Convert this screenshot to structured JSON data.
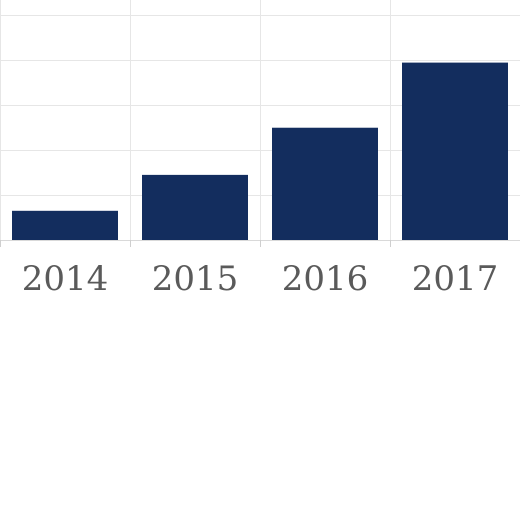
{
  "chart_data": {
    "type": "bar",
    "title": "",
    "xlabel": "",
    "ylabel": "",
    "categories": [
      "2014",
      "2015",
      "2016",
      "2017"
    ],
    "values": [
      1.3,
      2.9,
      5.0,
      7.9
    ],
    "ylim": [
      0,
      11
    ],
    "grid": true,
    "bar_color": "#132d5e"
  }
}
